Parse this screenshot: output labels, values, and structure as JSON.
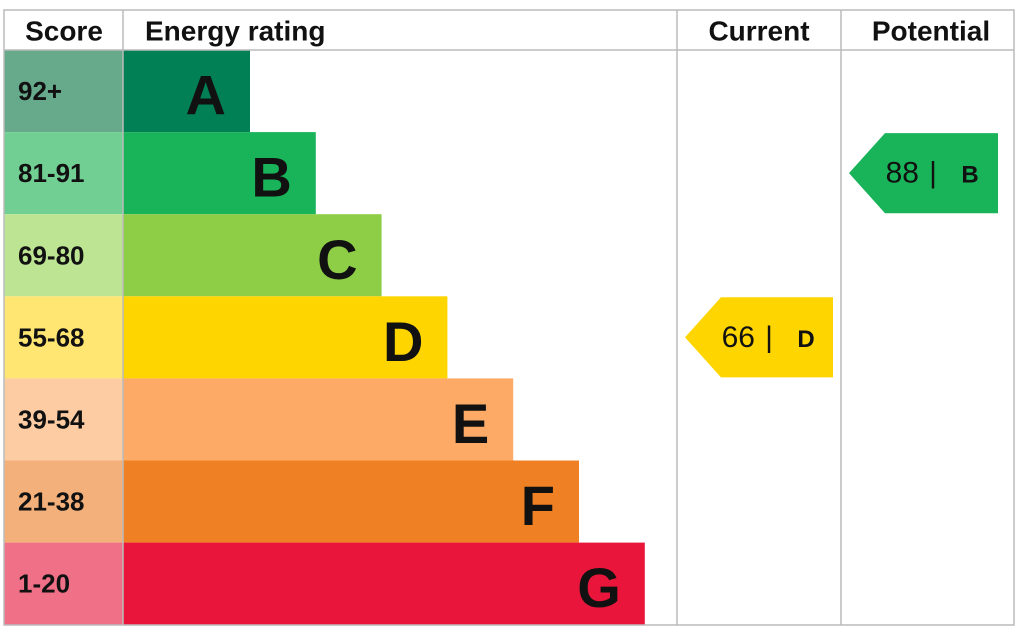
{
  "header": {
    "score": "Score",
    "rating": "Energy rating",
    "current": "Current",
    "potential": "Potential"
  },
  "bands": [
    {
      "score": "92+",
      "letter": "A",
      "color": "#008054",
      "tint": "#66a98b"
    },
    {
      "score": "81-91",
      "letter": "B",
      "color": "#19b459",
      "tint": "#72cf93"
    },
    {
      "score": "69-80",
      "letter": "C",
      "color": "#8dce46",
      "tint": "#bde492"
    },
    {
      "score": "55-68",
      "letter": "D",
      "color": "#ffd500",
      "tint": "#ffe672"
    },
    {
      "score": "39-54",
      "letter": "E",
      "color": "#fcaa65",
      "tint": "#fdcca2"
    },
    {
      "score": "21-38",
      "letter": "F",
      "color": "#ef8023",
      "tint": "#f3b07a"
    },
    {
      "score": "1-20",
      "letter": "G",
      "color": "#e9153b",
      "tint": "#f07088"
    }
  ],
  "current": {
    "score": 66,
    "separator": "|",
    "rating": "D"
  },
  "potential": {
    "score": 88,
    "separator": "|",
    "rating": "B"
  }
}
